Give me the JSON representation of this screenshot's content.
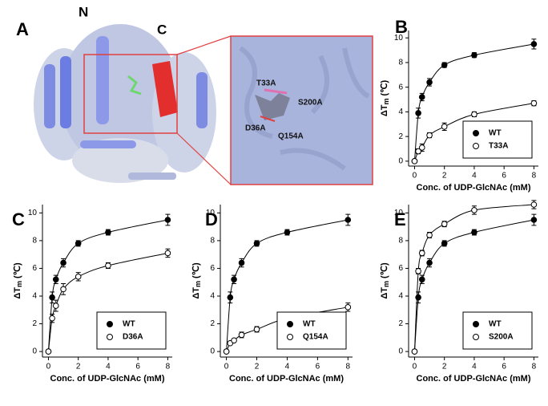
{
  "panel_a": {
    "label": "A",
    "n_label": "N",
    "c_label": "C",
    "residues": [
      "T33A",
      "S200A",
      "D36A",
      "Q154A"
    ]
  },
  "chart_data": [
    {
      "type": "scatter",
      "panel": "B",
      "x_label": "Conc. of UDP-GlcNAc (mM)",
      "y_label": {
        "delta": "ΔT",
        "sub": "m",
        "unit": "(℃)"
      },
      "x": [
        0,
        0.25,
        0.5,
        1,
        2,
        4,
        8
      ],
      "xlim": [
        -0.4,
        8.3
      ],
      "xticks": [
        0,
        2,
        4,
        6,
        8
      ],
      "ylim": [
        -0.4,
        10.6
      ],
      "yticks": [
        0,
        2,
        4,
        6,
        8,
        10
      ],
      "legend": "lower right",
      "series": [
        {
          "name": "WT",
          "color": "#000000",
          "marker": "filled",
          "values": [
            0,
            3.9,
            5.2,
            6.4,
            7.8,
            8.6,
            9.5
          ],
          "errors": [
            0,
            0.4,
            0.3,
            0.3,
            0.2,
            0.2,
            0.4
          ]
        },
        {
          "name": "T33A",
          "color": "#000000",
          "marker": "open",
          "values": [
            0,
            0.8,
            1.1,
            2.1,
            2.8,
            3.8,
            4.7
          ],
          "errors": [
            0,
            0.2,
            0.3,
            0.2,
            0.3,
            0.2,
            0.2
          ]
        }
      ]
    },
    {
      "type": "scatter",
      "panel": "C",
      "x_label": "Conc. of UDP-GlcNAc (mM)",
      "y_label": {
        "delta": "ΔT",
        "sub": "m",
        "unit": "(℃)"
      },
      "x": [
        0,
        0.25,
        0.5,
        1,
        2,
        4,
        8
      ],
      "xlim": [
        -0.4,
        8.3
      ],
      "xticks": [
        0,
        2,
        4,
        6,
        8
      ],
      "ylim": [
        -0.4,
        10.6
      ],
      "yticks": [
        0,
        2,
        4,
        6,
        8,
        10
      ],
      "legend": "lower right",
      "series": [
        {
          "name": "WT",
          "color": "#000000",
          "marker": "filled",
          "values": [
            0,
            3.9,
            5.2,
            6.4,
            7.8,
            8.6,
            9.5
          ],
          "errors": [
            0,
            0.4,
            0.3,
            0.3,
            0.2,
            0.2,
            0.4
          ]
        },
        {
          "name": "D36A",
          "color": "#000000",
          "marker": "open",
          "values": [
            0,
            2.4,
            3.3,
            4.5,
            5.4,
            6.2,
            7.1
          ],
          "errors": [
            0,
            0.3,
            0.4,
            0.4,
            0.3,
            0.2,
            0.3
          ]
        }
      ]
    },
    {
      "type": "scatter",
      "panel": "D",
      "x_label": "Conc. of UDP-GlcNAc (mM)",
      "y_label": {
        "delta": "ΔT",
        "sub": "m",
        "unit": "(℃)"
      },
      "x": [
        0,
        0.25,
        0.5,
        1,
        2,
        4,
        8
      ],
      "xlim": [
        -0.4,
        8.3
      ],
      "xticks": [
        0,
        2,
        4,
        6,
        8
      ],
      "ylim": [
        -0.4,
        10.6
      ],
      "yticks": [
        0,
        2,
        4,
        6,
        8,
        10
      ],
      "legend": "lower right",
      "series": [
        {
          "name": "WT",
          "color": "#000000",
          "marker": "filled",
          "values": [
            0,
            3.9,
            5.2,
            6.4,
            7.8,
            8.6,
            9.5
          ],
          "errors": [
            0,
            0.4,
            0.3,
            0.3,
            0.2,
            0.2,
            0.4
          ]
        },
        {
          "name": "Q154A",
          "color": "#000000",
          "marker": "open",
          "values": [
            0,
            0.6,
            0.8,
            1.2,
            1.6,
            2.4,
            3.2
          ],
          "errors": [
            0,
            0.1,
            0.1,
            0.2,
            0.2,
            0.1,
            0.3
          ]
        }
      ]
    },
    {
      "type": "scatter",
      "panel": "E",
      "x_label": "Conc. of UDP-GlcNAc (mM)",
      "y_label": {
        "delta": "ΔT",
        "sub": "m",
        "unit": "(℃)"
      },
      "x": [
        0,
        0.25,
        0.5,
        1,
        2,
        4,
        8
      ],
      "xlim": [
        -0.4,
        8.3
      ],
      "xticks": [
        0,
        2,
        4,
        6,
        8
      ],
      "ylim": [
        -0.4,
        10.6
      ],
      "yticks": [
        0,
        2,
        4,
        6,
        8,
        10
      ],
      "legend": "lower right",
      "series": [
        {
          "name": "WT",
          "color": "#000000",
          "marker": "filled",
          "values": [
            0,
            3.9,
            5.2,
            6.4,
            7.8,
            8.6,
            9.5
          ],
          "errors": [
            0,
            0.4,
            0.3,
            0.3,
            0.2,
            0.2,
            0.4
          ]
        },
        {
          "name": "S200A",
          "color": "#000000",
          "marker": "open",
          "values": [
            0,
            5.8,
            7.1,
            8.4,
            9.2,
            10.2,
            10.6
          ],
          "errors": [
            0,
            0.2,
            0.2,
            0.2,
            0.2,
            0.3,
            0.3
          ]
        }
      ]
    }
  ]
}
